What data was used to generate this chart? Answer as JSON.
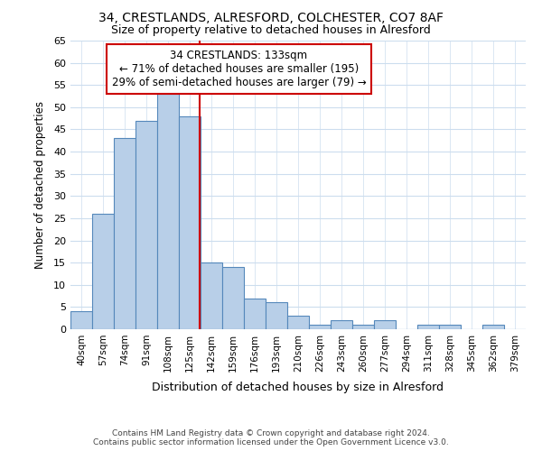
{
  "title_line1": "34, CRESTLANDS, ALRESFORD, COLCHESTER, CO7 8AF",
  "title_line2": "Size of property relative to detached houses in Alresford",
  "xlabel": "Distribution of detached houses by size in Alresford",
  "ylabel": "Number of detached properties",
  "footer_line1": "Contains HM Land Registry data © Crown copyright and database right 2024.",
  "footer_line2": "Contains public sector information licensed under the Open Government Licence v3.0.",
  "categories": [
    "40sqm",
    "57sqm",
    "74sqm",
    "91sqm",
    "108sqm",
    "125sqm",
    "142sqm",
    "159sqm",
    "176sqm",
    "193sqm",
    "210sqm",
    "226sqm",
    "243sqm",
    "260sqm",
    "277sqm",
    "294sqm",
    "311sqm",
    "328sqm",
    "345sqm",
    "362sqm",
    "379sqm"
  ],
  "values": [
    4,
    26,
    43,
    47,
    53,
    48,
    15,
    14,
    7,
    6,
    3,
    1,
    2,
    1,
    2,
    0,
    1,
    1,
    0,
    1,
    0
  ],
  "bar_color": "#b8cfe8",
  "bar_edge_color": "#5588bb",
  "background_color": "#ffffff",
  "plot_bg_color": "#ffffff",
  "grid_color": "#ccddee",
  "annotation_text": "34 CRESTLANDS: 133sqm\n← 71% of detached houses are smaller (195)\n29% of semi-detached houses are larger (79) →",
  "annotation_box_color": "#ffffff",
  "annotation_box_edge_color": "#cc0000",
  "marker_line_color": "#cc0000",
  "ylim": [
    0,
    65
  ],
  "yticks": [
    0,
    5,
    10,
    15,
    20,
    25,
    30,
    35,
    40,
    45,
    50,
    55,
    60,
    65
  ]
}
